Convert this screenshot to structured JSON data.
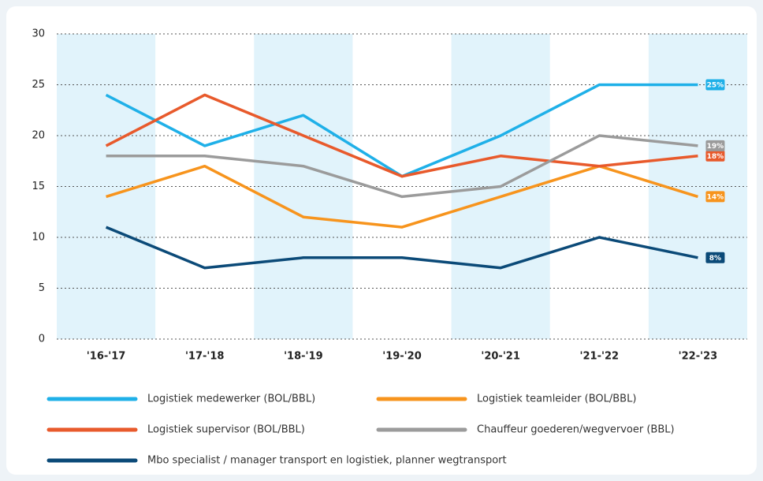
{
  "chart_data": {
    "type": "line",
    "categories": [
      "'16-'17",
      "'17-'18",
      "'18-'19",
      "'19-'20",
      "'20-'21",
      "'21-'22",
      "'22-'23"
    ],
    "series": [
      {
        "name": "Logistiek medewerker (BOL/BBL)",
        "color": "#1fb0e8",
        "values": [
          24,
          19,
          22,
          16,
          20,
          25,
          25
        ],
        "value_labels": [
          null,
          null,
          null,
          null,
          null,
          null,
          "25%"
        ]
      },
      {
        "name": "Logistiek teamleider (BOL/BBL)",
        "color": "#f7941d",
        "values": [
          14,
          17,
          12,
          11,
          14,
          17,
          14
        ],
        "value_labels": [
          null,
          null,
          null,
          null,
          null,
          null,
          "14%"
        ]
      },
      {
        "name": "Logistiek supervisor (BOL/BBL)",
        "color": "#e85a2c",
        "values": [
          19,
          24,
          20,
          16,
          18,
          17,
          18
        ],
        "value_labels": [
          null,
          null,
          null,
          null,
          null,
          null,
          "18%"
        ]
      },
      {
        "name": "Chauffeur goederen/wegvervoer (BBL)",
        "color": "#9b9b9b",
        "values": [
          18,
          18,
          17,
          14,
          15,
          20,
          19
        ],
        "value_labels": [
          null,
          null,
          null,
          null,
          null,
          null,
          "19%"
        ]
      },
      {
        "name": "Mbo specialist / manager transport en logistiek, planner wegtransport",
        "color": "#0b4a78",
        "values": [
          11,
          7,
          8,
          8,
          7,
          10,
          8
        ],
        "value_labels": [
          null,
          null,
          null,
          null,
          null,
          null,
          "8%"
        ]
      }
    ],
    "ylim": [
      0,
      30
    ],
    "yticks": [
      0,
      5,
      10,
      15,
      20,
      25,
      30
    ],
    "grid": true,
    "band_color": "#e1f3fb"
  }
}
